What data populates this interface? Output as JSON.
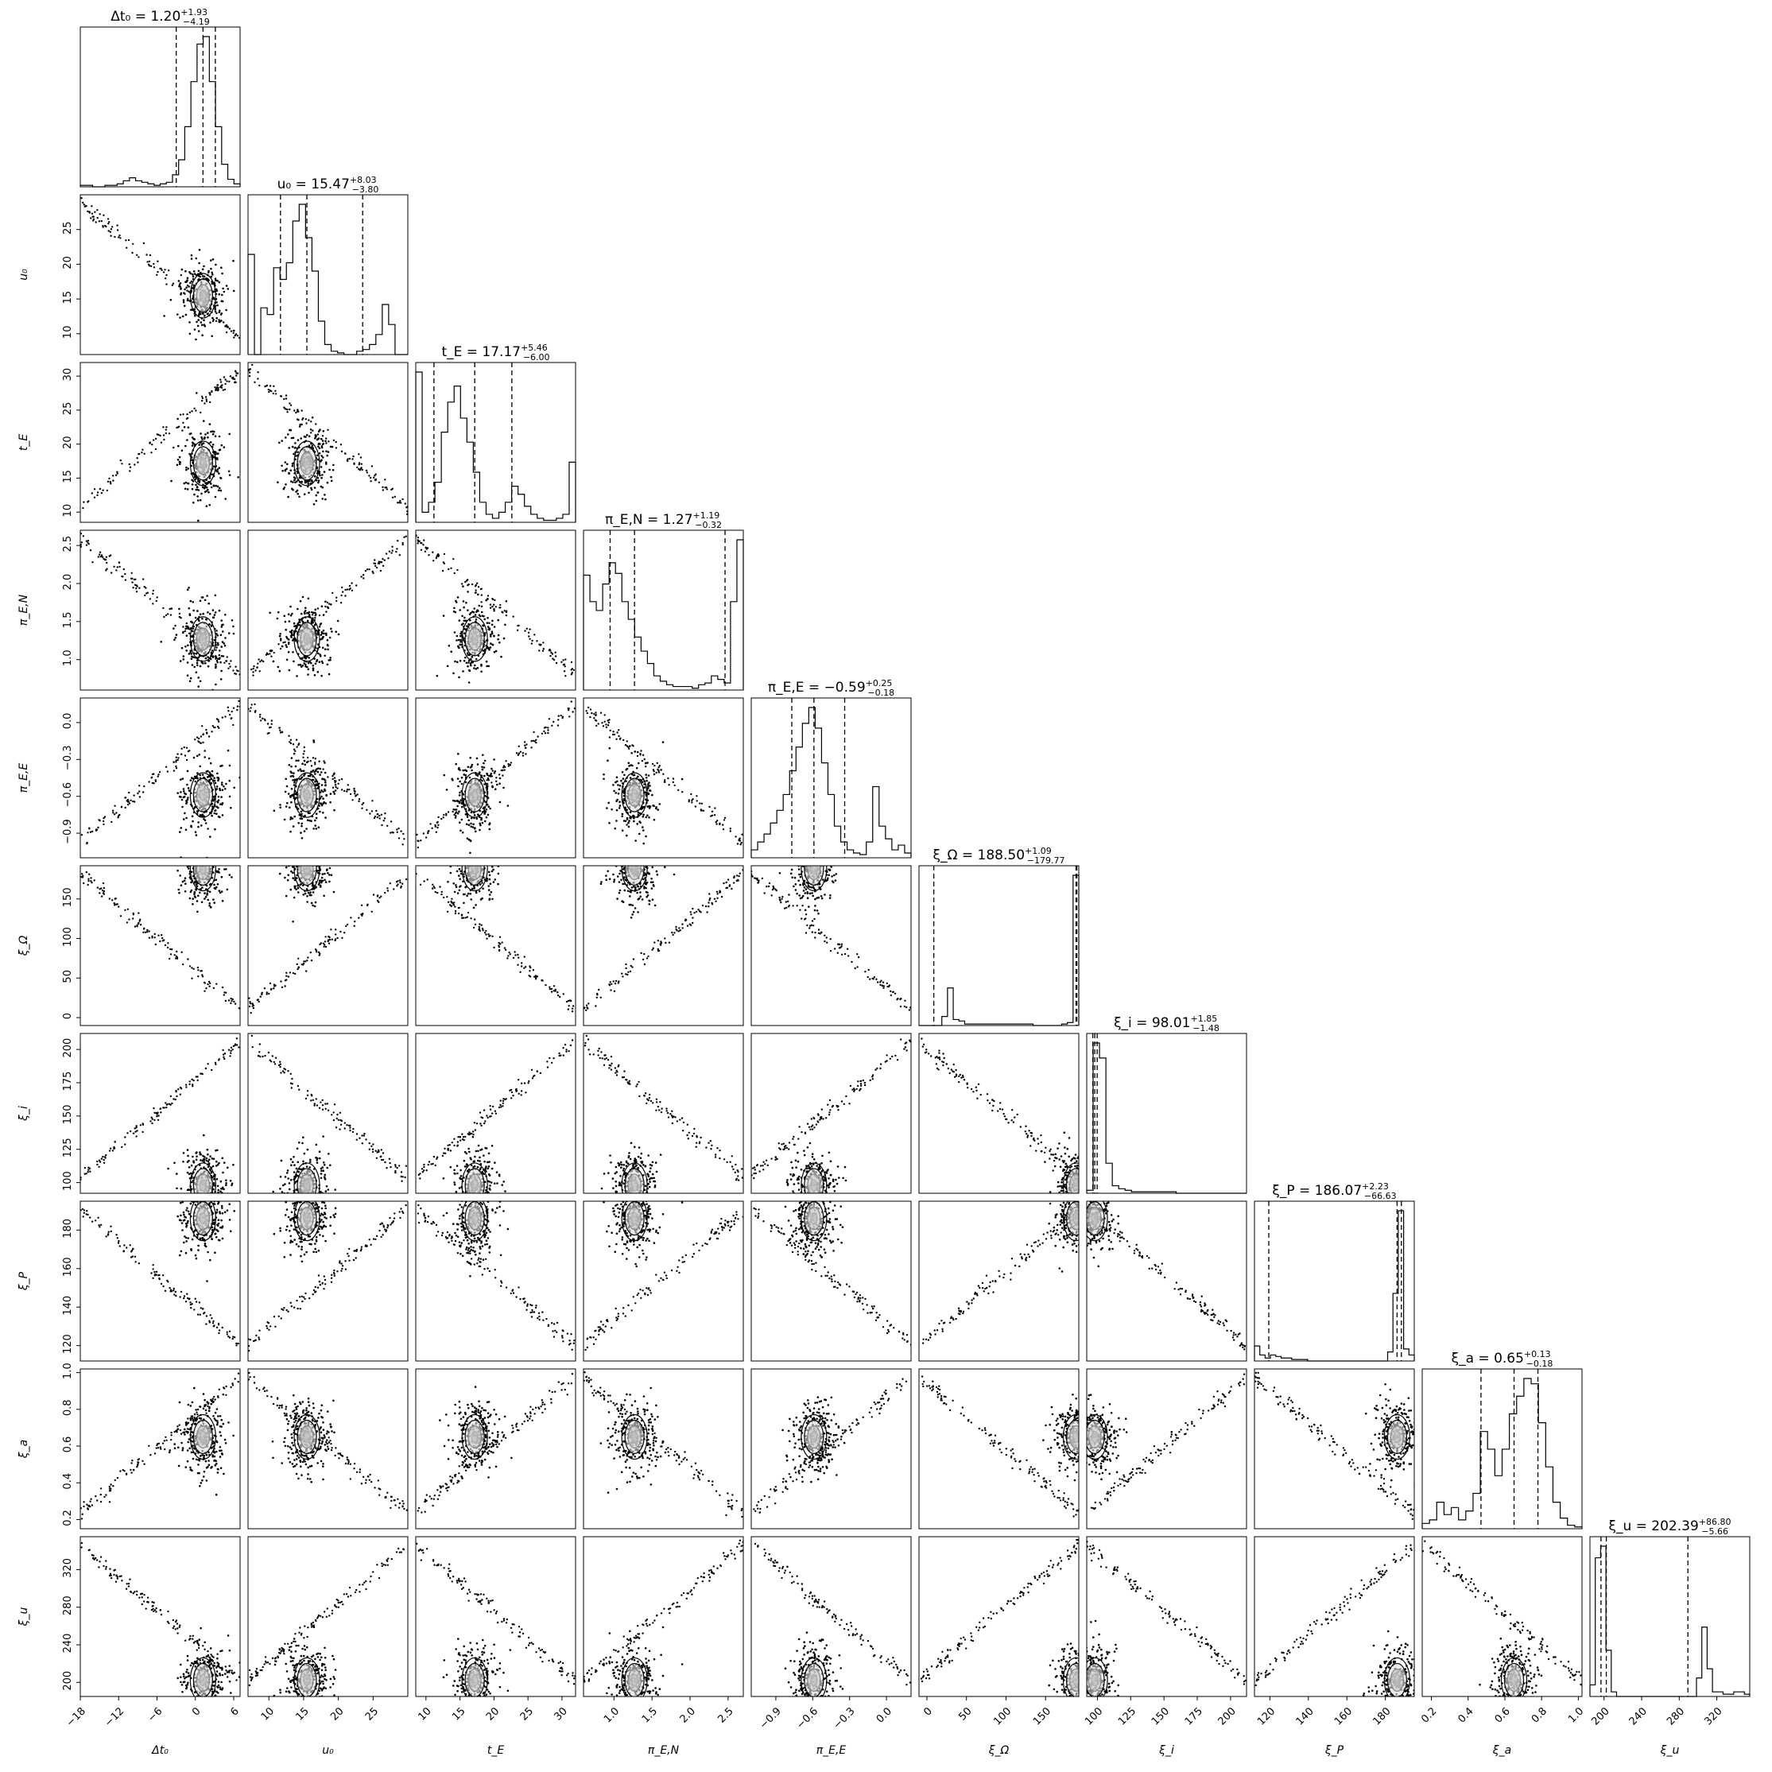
{
  "chart_data": {
    "type": "corner",
    "grid": false,
    "parameters": [
      {
        "key": "dt0",
        "label": "Δt₀",
        "title": "Δt₀ = 1.20",
        "median": 1.2,
        "plus": "+1.93",
        "minus": "−4.19",
        "quantiles": [
          -2.99,
          1.2,
          3.13
        ],
        "range": [
          -18,
          7
        ],
        "ticks": [
          -18,
          -12,
          -6,
          0,
          6
        ],
        "tick_labels": [
          "−18",
          "−12",
          "−6",
          "0",
          "6"
        ]
      },
      {
        "key": "u0",
        "label": "u₀",
        "title": "u₀ = 15.47",
        "median": 15.47,
        "plus": "+8.03",
        "minus": "−3.80",
        "quantiles": [
          11.67,
          15.47,
          23.5
        ],
        "range": [
          7,
          30
        ],
        "ticks": [
          10,
          15,
          20,
          25
        ],
        "tick_labels": [
          "10",
          "15",
          "20",
          "25"
        ]
      },
      {
        "key": "tE",
        "label": "t_E",
        "title": "t_E = 17.17",
        "median": 17.17,
        "plus": "+5.46",
        "minus": "−6.00",
        "quantiles": [
          11.17,
          17.17,
          22.63
        ],
        "range": [
          8.5,
          32
        ],
        "ticks": [
          10,
          15,
          20,
          25,
          30
        ],
        "tick_labels": [
          "10",
          "15",
          "20",
          "25",
          "30"
        ]
      },
      {
        "key": "piEN",
        "label": "π_E,N",
        "title": "π_E,N = 1.27",
        "median": 1.27,
        "plus": "+1.19",
        "minus": "−0.32",
        "quantiles": [
          0.95,
          1.27,
          2.46
        ],
        "range": [
          0.6,
          2.7
        ],
        "ticks": [
          1.0,
          1.5,
          2.0,
          2.5
        ],
        "tick_labels": [
          "1.0",
          "1.5",
          "2.0",
          "2.5"
        ]
      },
      {
        "key": "piEE",
        "label": "π_E,E",
        "title": "π_E,E = −0.59",
        "median": -0.59,
        "plus": "+0.25",
        "minus": "−0.18",
        "quantiles": [
          -0.77,
          -0.59,
          -0.34
        ],
        "range": [
          -1.1,
          0.2
        ],
        "ticks": [
          -0.9,
          -0.6,
          -0.3,
          0.0
        ],
        "tick_labels": [
          "−0.9",
          "−0.6",
          "−0.3",
          "0.0"
        ]
      },
      {
        "key": "xiO",
        "label": "ξ_Ω",
        "title": "ξ_Ω = 188.50",
        "median": 188.5,
        "plus": "+1.09",
        "minus": "−179.77",
        "quantiles": [
          8.73,
          188.5,
          189.59
        ],
        "range": [
          -10,
          192
        ],
        "ticks": [
          0,
          50,
          100,
          150
        ],
        "tick_labels": [
          "0",
          "50",
          "100",
          "150"
        ]
      },
      {
        "key": "xii",
        "label": "ξ_i",
        "title": "ξ_i = 98.01",
        "median": 98.01,
        "plus": "+1.85",
        "minus": "−1.48",
        "quantiles": [
          96.53,
          98.01,
          99.86
        ],
        "range": [
          92,
          212
        ],
        "ticks": [
          100,
          125,
          150,
          175,
          200
        ],
        "tick_labels": [
          "100",
          "125",
          "150",
          "175",
          "200"
        ]
      },
      {
        "key": "xiP",
        "label": "ξ_P",
        "title": "ξ_P = 186.07",
        "median": 186.07,
        "plus": "+2.23",
        "minus": "−66.63",
        "quantiles": [
          119.44,
          186.07,
          188.3
        ],
        "range": [
          112,
          195
        ],
        "ticks": [
          120,
          140,
          160,
          180
        ],
        "tick_labels": [
          "120",
          "140",
          "160",
          "180"
        ]
      },
      {
        "key": "xia",
        "label": "ξ_a",
        "title": "ξ_a = 0.65",
        "median": 0.65,
        "plus": "+0.13",
        "minus": "−0.18",
        "quantiles": [
          0.47,
          0.65,
          0.78
        ],
        "range": [
          0.15,
          1.02
        ],
        "ticks": [
          0.2,
          0.4,
          0.6,
          0.8,
          1.0
        ],
        "tick_labels": [
          "0.2",
          "0.4",
          "0.6",
          "0.8",
          "1.0"
        ]
      },
      {
        "key": "xiu",
        "label": "ξ_u",
        "title": "ξ_u = 202.39",
        "median": 202.39,
        "plus": "+86.80",
        "minus": "−5.66",
        "quantiles": [
          196.73,
          202.39,
          289.19
        ],
        "range": [
          185,
          355
        ],
        "ticks": [
          200,
          240,
          280,
          320
        ],
        "tick_labels": [
          "200",
          "240",
          "280",
          "320"
        ]
      }
    ],
    "histograms": {
      "dt0": [
        1,
        1,
        0,
        0,
        1,
        1,
        2,
        4,
        6,
        4,
        3,
        2,
        1,
        2,
        3,
        8,
        18,
        40,
        70,
        95,
        100,
        70,
        40,
        15,
        5,
        2
      ],
      "u0": [
        60,
        0,
        28,
        24,
        52,
        45,
        55,
        80,
        90,
        70,
        50,
        20,
        6,
        2,
        1,
        0,
        0,
        2,
        3,
        6,
        12,
        30,
        18,
        0,
        0
      ],
      "tE": [
        75,
        5,
        10,
        20,
        45,
        60,
        68,
        52,
        40,
        25,
        10,
        4,
        2,
        5,
        10,
        18,
        14,
        8,
        4,
        2,
        1,
        1,
        2,
        4,
        30
      ],
      "piEN": [
        65,
        50,
        45,
        60,
        72,
        66,
        50,
        40,
        30,
        22,
        15,
        8,
        5,
        3,
        2,
        2,
        2,
        1,
        3,
        4,
        8,
        6,
        4,
        50,
        85
      ],
      "piEE": [
        5,
        10,
        15,
        22,
        30,
        40,
        55,
        70,
        85,
        95,
        82,
        60,
        40,
        20,
        10,
        5,
        3,
        2,
        10,
        45,
        20,
        12,
        5,
        8,
        3
      ],
      "xiO": [
        0,
        0,
        0,
        0,
        6,
        25,
        4,
        3,
        1,
        1,
        1,
        1,
        1,
        1,
        1,
        1,
        1,
        1,
        1,
        1,
        0,
        0,
        0,
        0,
        0,
        1,
        2,
        100
      ],
      "xii": [
        2,
        100,
        90,
        20,
        5,
        3,
        2,
        1,
        1,
        1,
        1,
        1,
        1,
        1,
        0,
        0,
        0,
        0,
        0,
        0,
        0,
        0,
        0,
        0,
        0
      ],
      "xiP": [
        10,
        4,
        2,
        4,
        3,
        2,
        2,
        1,
        1,
        1,
        0,
        0,
        0,
        0,
        0,
        0,
        0,
        0,
        0,
        0,
        0,
        0,
        0,
        0,
        0,
        6,
        45,
        100,
        8,
        4
      ],
      "xia": [
        3,
        5,
        15,
        8,
        12,
        5,
        10,
        20,
        55,
        45,
        30,
        45,
        65,
        75,
        85,
        82,
        60,
        35,
        15,
        6,
        2,
        1
      ],
      "xiu": [
        5,
        60,
        65,
        20,
        2,
        0,
        0,
        0,
        0,
        0,
        0,
        0,
        0,
        0,
        0,
        0,
        0,
        0,
        0,
        0,
        8,
        30,
        12,
        2,
        2,
        1,
        1,
        2,
        2,
        1
      ]
    },
    "contour_levels": 4,
    "scatter_outliers": true
  }
}
